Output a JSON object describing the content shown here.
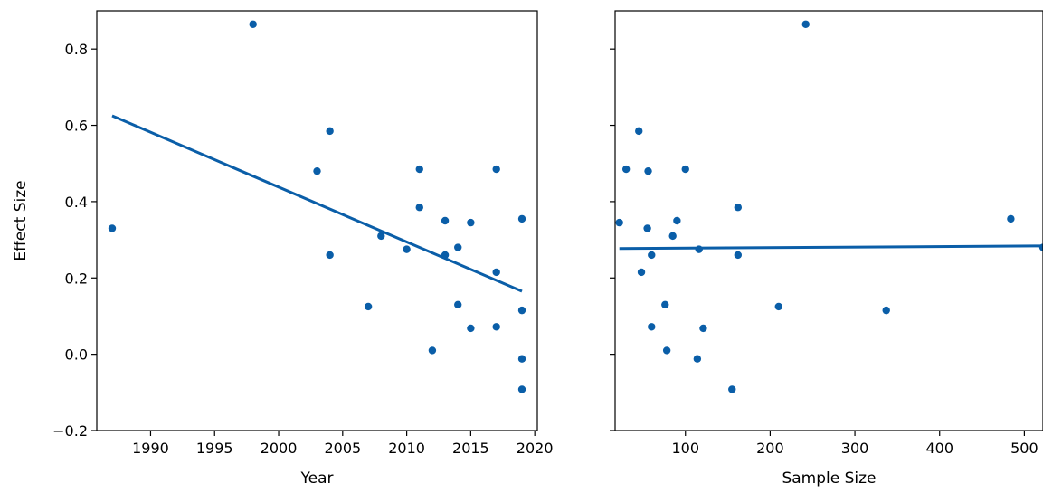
{
  "chart_data": [
    {
      "type": "scatter",
      "xlabel": "Year",
      "ylabel": "Effect Size",
      "xlim": [
        1985.8,
        2020.2
      ],
      "ylim": [
        -0.2,
        0.9
      ],
      "xticks": [
        1990,
        1995,
        2000,
        2005,
        2010,
        2015,
        2020
      ],
      "yticks": [
        -0.2,
        0.0,
        0.2,
        0.4,
        0.6,
        0.8
      ],
      "xtick_labels": [
        "1990",
        "1995",
        "2000",
        "2005",
        "2010",
        "2015",
        "2020"
      ],
      "ytick_labels": [
        "−0.2",
        "0.0",
        "0.2",
        "0.4",
        "0.6",
        "0.8"
      ],
      "points": [
        {
          "x": 1987,
          "y": 0.33
        },
        {
          "x": 1998,
          "y": 0.865
        },
        {
          "x": 2003,
          "y": 0.48
        },
        {
          "x": 2004,
          "y": 0.585
        },
        {
          "x": 2004,
          "y": 0.26
        },
        {
          "x": 2007,
          "y": 0.125
        },
        {
          "x": 2008,
          "y": 0.31
        },
        {
          "x": 2010,
          "y": 0.275
        },
        {
          "x": 2011,
          "y": 0.485
        },
        {
          "x": 2011,
          "y": 0.385
        },
        {
          "x": 2012,
          "y": 0.01
        },
        {
          "x": 2013,
          "y": 0.35
        },
        {
          "x": 2013,
          "y": 0.26
        },
        {
          "x": 2014,
          "y": 0.28
        },
        {
          "x": 2014,
          "y": 0.13
        },
        {
          "x": 2015,
          "y": 0.345
        },
        {
          "x": 2015,
          "y": 0.068
        },
        {
          "x": 2017,
          "y": 0.485
        },
        {
          "x": 2017,
          "y": 0.215
        },
        {
          "x": 2017,
          "y": 0.072
        },
        {
          "x": 2019,
          "y": 0.355
        },
        {
          "x": 2019,
          "y": 0.115
        },
        {
          "x": 2019,
          "y": -0.012
        },
        {
          "x": 2019,
          "y": -0.092
        }
      ],
      "trend": {
        "x": [
          1987,
          2019
        ],
        "y": [
          0.625,
          0.165
        ]
      }
    },
    {
      "type": "scatter",
      "xlabel": "Sample Size",
      "ylabel": "",
      "xlim": [
        17,
        522
      ],
      "ylim": [
        -0.2,
        0.9
      ],
      "xticks": [
        100,
        200,
        300,
        400,
        500
      ],
      "yticks": [
        -0.2,
        0.0,
        0.2,
        0.4,
        0.6,
        0.8
      ],
      "xtick_labels": [
        "100",
        "200",
        "300",
        "400",
        "500"
      ],
      "ytick_labels": [],
      "points": [
        {
          "x": 22,
          "y": 0.345
        },
        {
          "x": 30,
          "y": 0.485
        },
        {
          "x": 45,
          "y": 0.585
        },
        {
          "x": 48,
          "y": 0.215
        },
        {
          "x": 55,
          "y": 0.33
        },
        {
          "x": 56,
          "y": 0.48
        },
        {
          "x": 60,
          "y": 0.26
        },
        {
          "x": 60,
          "y": 0.072
        },
        {
          "x": 76,
          "y": 0.13
        },
        {
          "x": 78,
          "y": 0.01
        },
        {
          "x": 85,
          "y": 0.31
        },
        {
          "x": 90,
          "y": 0.35
        },
        {
          "x": 100,
          "y": 0.485
        },
        {
          "x": 114,
          "y": -0.012
        },
        {
          "x": 116,
          "y": 0.275
        },
        {
          "x": 121,
          "y": 0.068
        },
        {
          "x": 155,
          "y": -0.092
        },
        {
          "x": 162,
          "y": 0.385
        },
        {
          "x": 162,
          "y": 0.26
        },
        {
          "x": 210,
          "y": 0.125
        },
        {
          "x": 242,
          "y": 0.865
        },
        {
          "x": 337,
          "y": 0.115
        },
        {
          "x": 484,
          "y": 0.355
        },
        {
          "x": 522,
          "y": 0.28
        }
      ],
      "trend": {
        "x": [
          22,
          522
        ],
        "y": [
          0.277,
          0.284
        ]
      }
    }
  ],
  "style": {
    "marker_color": "#0a5ea8",
    "line_color": "#0a5ea8",
    "axis_color": "#000000",
    "background": "#ffffff"
  }
}
